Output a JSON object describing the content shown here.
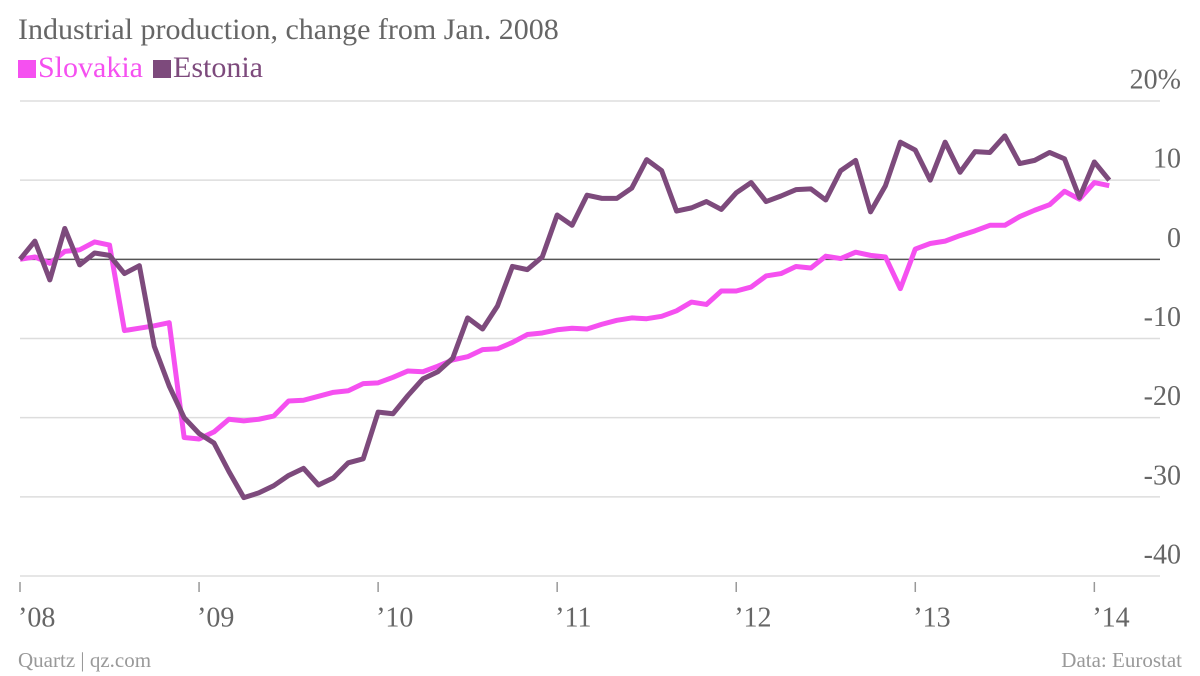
{
  "chart_data": {
    "type": "line",
    "title": "Industrial production, change from Jan. 2008",
    "source": "Quartz | qz.com",
    "credit": "Data: Eurostat",
    "legend": "top-left",
    "grid": true,
    "xlim": [
      0,
      76.4
    ],
    "xticks": [
      {
        "value": 0,
        "label": "’08"
      },
      {
        "value": 12,
        "label": "’09"
      },
      {
        "value": 24,
        "label": "’10"
      },
      {
        "value": 36,
        "label": "’11"
      },
      {
        "value": 48,
        "label": "’12"
      },
      {
        "value": 60,
        "label": "’13"
      },
      {
        "value": 72,
        "label": "’14"
      }
    ],
    "ylim": [
      -40,
      20
    ],
    "yticks": [
      {
        "value": 20,
        "label": "20%"
      },
      10,
      0,
      -10,
      -20,
      -30,
      -40
    ],
    "series": [
      {
        "name": "Slovakia",
        "color": "#f550f0",
        "values": [
          0,
          0.3,
          -0.5,
          1,
          1.2,
          2.2,
          1.8,
          -9,
          -8.7,
          -8.4,
          -8,
          -22.5,
          -22.7,
          -21.8,
          -20.2,
          -20.4,
          -20.2,
          -19.8,
          -17.9,
          -17.8,
          -17.3,
          -16.8,
          -16.6,
          -15.7,
          -15.6,
          -14.9,
          -14.1,
          -14.2,
          -13.5,
          -12.7,
          -12.3,
          -11.4,
          -11.3,
          -10.5,
          -9.5,
          -9.3,
          -8.9,
          -8.7,
          -8.8,
          -8.2,
          -7.7,
          -7.4,
          -7.5,
          -7.2,
          -6.5,
          -5.4,
          -5.7,
          -4,
          -4,
          -3.5,
          -2.1,
          -1.8,
          -0.9,
          -1.1,
          0.4,
          0.1,
          0.9,
          0.5,
          0.3,
          -3.7,
          1.3,
          2,
          2.3,
          3,
          3.6,
          4.3,
          4.3,
          5.4,
          6.2,
          6.9,
          8.6,
          7.6,
          9.7,
          9.3
        ]
      },
      {
        "name": "Estonia",
        "color": "#7d4a7c",
        "values": [
          0,
          2.3,
          -2.6,
          3.9,
          -0.7,
          0.8,
          0.5,
          -1.8,
          -0.8,
          -11,
          -16,
          -20,
          -22,
          -23.2,
          -26.8,
          -30.1,
          -29.5,
          -28.6,
          -27.3,
          -26.4,
          -28.5,
          -27.6,
          -25.7,
          -25.2,
          -19.3,
          -19.5,
          -17.2,
          -15.1,
          -14.2,
          -12.5,
          -7.4,
          -8.8,
          -5.9,
          -0.9,
          -1.3,
          0.3,
          5.6,
          4.3,
          8.1,
          7.7,
          7.7,
          9,
          12.6,
          11.2,
          6.1,
          6.5,
          7.3,
          6.3,
          8.4,
          9.7,
          7.3,
          8,
          8.8,
          8.9,
          7.5,
          11.2,
          12.5,
          6,
          9.3,
          14.8,
          13.8,
          10,
          14.8,
          11,
          13.6,
          13.5,
          15.6,
          12.1,
          12.5,
          13.5,
          12.7,
          7.8,
          12.3,
          10
        ]
      }
    ]
  }
}
